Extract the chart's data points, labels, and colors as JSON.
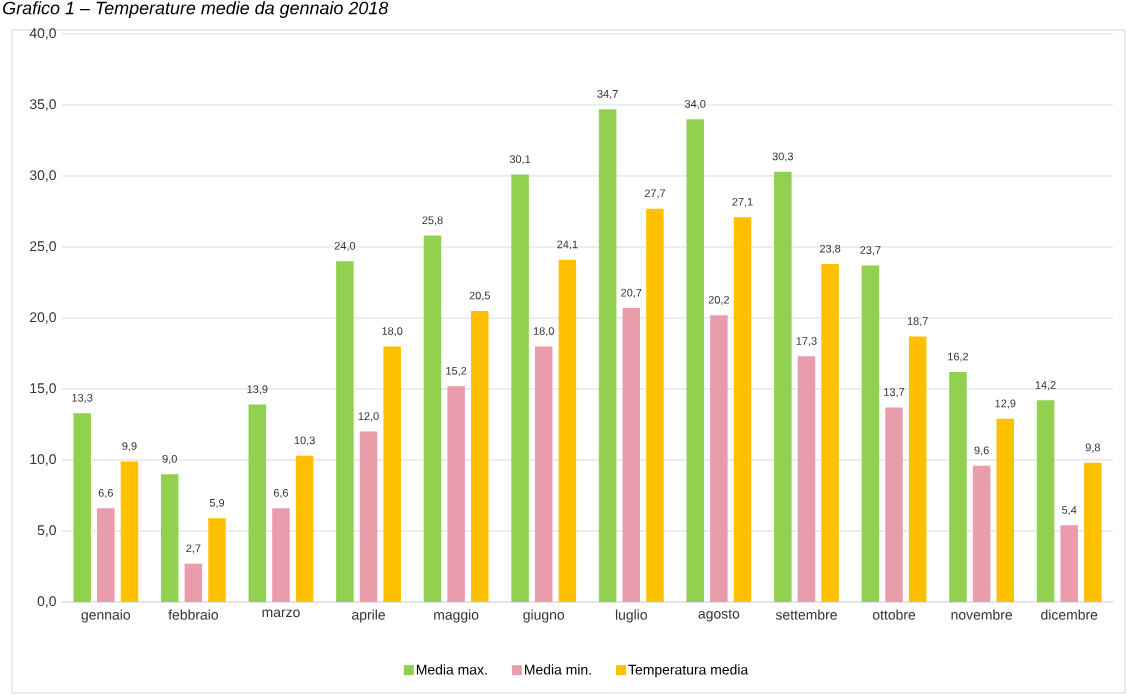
{
  "chart_data": {
    "type": "bar",
    "title": "Grafico 1 – Temperature medie da gennaio 2018",
    "categories": [
      "gennaio",
      "febbraio",
      "marzo",
      "aprile",
      "maggio",
      "giugno",
      "luglio",
      "agosto",
      "settembre",
      "ottobre",
      "novembre",
      "dicembre"
    ],
    "series": [
      {
        "name": "Media max.",
        "color": "#92d050",
        "values": [
          13.3,
          9.0,
          13.9,
          24.0,
          25.8,
          30.1,
          34.7,
          34.0,
          30.3,
          23.7,
          16.2,
          14.2
        ],
        "value_labels": [
          "13,3",
          "9,0",
          "13,9",
          "24,0",
          "25,8",
          "30,1",
          "34,7",
          "34,0",
          "30,3",
          "23,7",
          "16,2",
          "14,2"
        ]
      },
      {
        "name": "Media min.",
        "color": "#e99caa",
        "values": [
          6.6,
          2.7,
          6.6,
          12.0,
          15.2,
          18.0,
          20.7,
          20.2,
          17.3,
          13.7,
          9.6,
          5.4
        ],
        "value_labels": [
          "6,6",
          "2,7",
          "6,6",
          "12,0",
          "15,2",
          "18,0",
          "20,7",
          "20,2",
          "17,3",
          "13,7",
          "9,6",
          "5,4"
        ]
      },
      {
        "name": "Temperatura media",
        "color": "#ffc000",
        "values": [
          9.9,
          5.9,
          10.3,
          18.0,
          20.5,
          24.1,
          27.7,
          27.1,
          23.8,
          18.7,
          12.9,
          9.8
        ],
        "value_labels": [
          "9,9",
          "5,9",
          "10,3",
          "18,0",
          "20,5",
          "24,1",
          "27,7",
          "27,1",
          "23,8",
          "18,7",
          "12,9",
          "9,8"
        ]
      }
    ],
    "ylim": [
      0,
      40
    ],
    "yticks": [
      {
        "value": 0,
        "label": "0,0"
      },
      {
        "value": 5,
        "label": "5,0"
      },
      {
        "value": 10,
        "label": "10,0"
      },
      {
        "value": 15,
        "label": "15,0"
      },
      {
        "value": 20,
        "label": "20,0"
      },
      {
        "value": 25,
        "label": "25,0"
      },
      {
        "value": 30,
        "label": "30,0"
      },
      {
        "value": 35,
        "label": "35,0"
      },
      {
        "value": 40,
        "label": "40,0"
      }
    ],
    "grid": "y",
    "legend": "bottom"
  }
}
